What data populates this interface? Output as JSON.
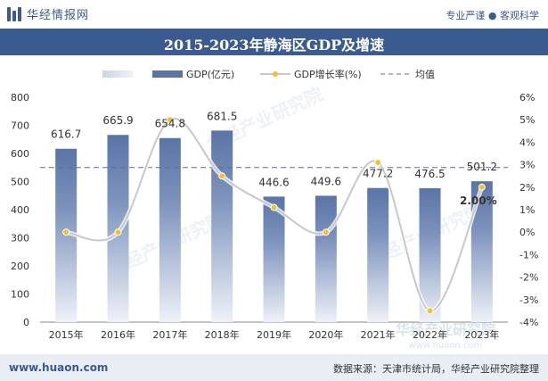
{
  "header": {
    "logo_text": "华经情报网",
    "slogan": "专业严谨 ● 客观科学"
  },
  "footer": {
    "website": "www.huaon.com",
    "source": "数据来源：天津市统计局，华经产业研究院整理"
  },
  "watermarks": [
    "华经产业研究院",
    "www.huaon.com"
  ],
  "colors": {
    "brand": "#3b5a8f",
    "bar": "#5a74a6",
    "line": "#c8c8c8",
    "marker": "#f2c12e",
    "avg_line": "#5c6f8f"
  },
  "chart_data": {
    "type": "bar",
    "title": "2015-2023年静海区GDP及增速",
    "categories": [
      "2015年",
      "2016年",
      "2017年",
      "2018年",
      "2019年",
      "2020年",
      "2021年",
      "2022年",
      "2023年"
    ],
    "series": [
      {
        "name": "GDP(亿元)",
        "type": "bar",
        "axis": "left",
        "values": [
          616.7,
          665.9,
          654.8,
          681.5,
          446.6,
          449.6,
          477.2,
          476.5,
          501.2
        ],
        "labels": [
          "616.7",
          "665.9",
          "654.8",
          "681.5",
          "446.6",
          "449.6",
          "477.2",
          "476.5",
          "501.2"
        ]
      },
      {
        "name": "GDP增长率(%)",
        "type": "line",
        "axis": "right",
        "values": [
          0.0,
          0.0,
          5.0,
          2.5,
          1.1,
          0.0,
          3.1,
          -3.5,
          2.0
        ],
        "highlight_label": {
          "index": 8,
          "text": "2.00%"
        }
      }
    ],
    "average": {
      "name": "均值",
      "value": 550.0
    },
    "left_axis": {
      "ylim": [
        0,
        800
      ],
      "ticks": [
        "0",
        "100",
        "200",
        "300",
        "400",
        "500",
        "600",
        "700",
        "800"
      ]
    },
    "right_axis": {
      "ylim": [
        -4,
        6
      ],
      "ticks": [
        "-4%",
        "-3%",
        "-2%",
        "-1%",
        "0%",
        "1%",
        "2%",
        "3%",
        "4%",
        "5%",
        "6%"
      ]
    },
    "legend_position": "top-center",
    "grid": false
  }
}
